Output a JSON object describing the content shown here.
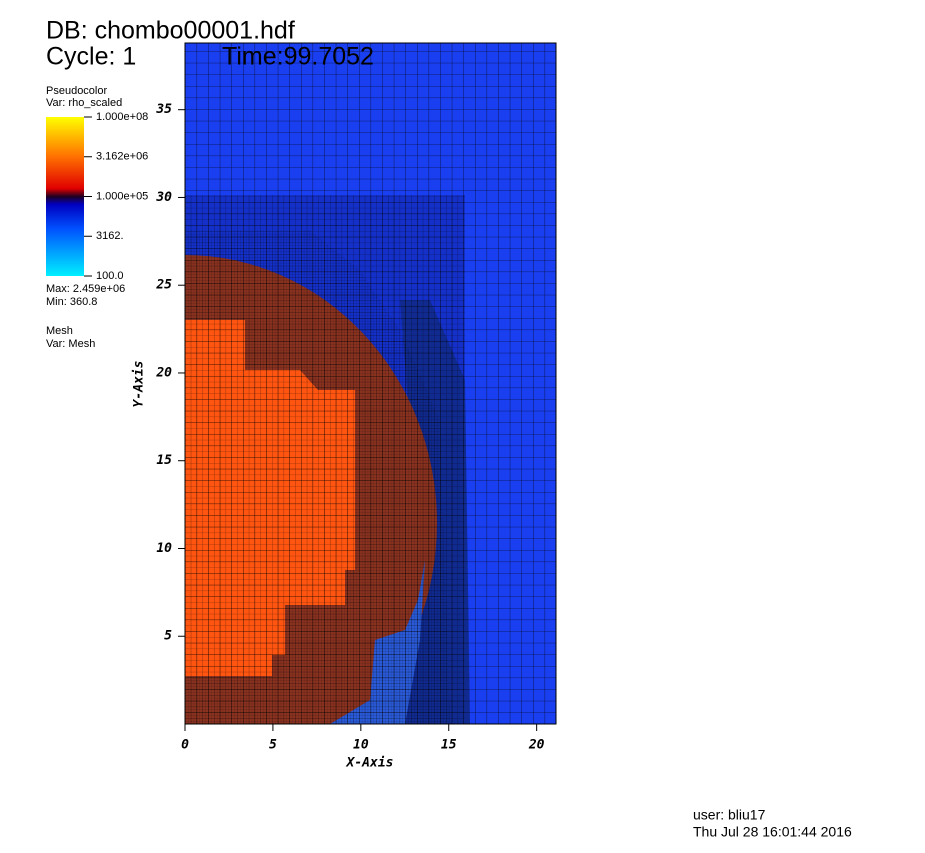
{
  "chart_data": {
    "type": "pseudocolor",
    "title": "DB: chombo00001.hdf",
    "cycle": "Cycle: 1",
    "time": "Time:99.7052",
    "plot_name": "Pseudocolor",
    "variable": "Var: rho_scaled",
    "max": "Max: 2.459e+06",
    "min": "Min: 360.8",
    "mesh_name": "Mesh",
    "mesh_variable": "Var: Mesh",
    "x_label": "X-Axis",
    "y_label": "Y-Axis",
    "xlim": [
      0,
      21.1
    ],
    "ylim": [
      0,
      38.8
    ],
    "xticks": [
      0,
      5,
      10,
      15,
      20
    ],
    "yticks": [
      5,
      10,
      15,
      20,
      25,
      30,
      35
    ],
    "colorbar": {
      "log": true,
      "lim": [
        100,
        100000000
      ],
      "ticks": [
        {
          "value": 100000000,
          "label": "1.000e+08"
        },
        {
          "value": 3162000,
          "label": "3.162e+06"
        },
        {
          "value": 100000,
          "label": "1.000e+05"
        },
        {
          "value": 3162,
          "label": "3162."
        },
        {
          "value": 100,
          "label": "100.0"
        }
      ]
    },
    "user": "user: bliu17",
    "date": "Thu Jul 28 16:01:44 2016"
  }
}
